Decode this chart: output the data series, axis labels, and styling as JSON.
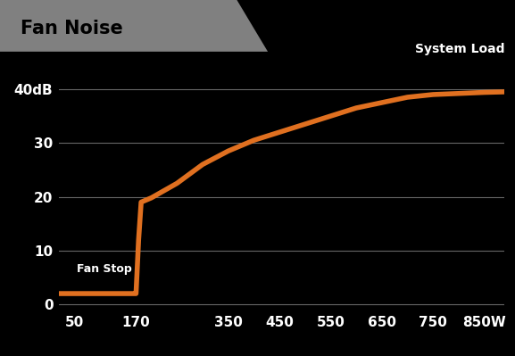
{
  "title": "Fan Noise",
  "title_bg_color": "#808080",
  "title_text_color": "#000000",
  "plot_bg_color": "#000000",
  "fig_bg_color": "#000000",
  "line_color": "#e07020",
  "line_width": 4,
  "grid_color": "#666666",
  "text_color": "#ffffff",
  "xlabel_text": "System Load",
  "annotation_text": "Fan Stop",
  "x_ticks": [
    50,
    170,
    350,
    450,
    550,
    650,
    750,
    850
  ],
  "x_tick_labels": [
    "50",
    "170",
    "350",
    "450",
    "550",
    "650",
    "750",
    "850W"
  ],
  "y_ticks": [
    0,
    10,
    20,
    30,
    40
  ],
  "y_tick_labels": [
    "0",
    "10",
    "20",
    "30",
    "40dB"
  ],
  "xlim": [
    20,
    890
  ],
  "ylim": [
    -1,
    44
  ],
  "curve_x": [
    20,
    50,
    100,
    140,
    160,
    168,
    170,
    172,
    175,
    180,
    200,
    250,
    300,
    350,
    400,
    450,
    500,
    550,
    600,
    650,
    700,
    750,
    800,
    850,
    890
  ],
  "curve_y": [
    2,
    2,
    2,
    2,
    2,
    2,
    2,
    6,
    12,
    19,
    19.8,
    22.5,
    26,
    28.5,
    30.5,
    32,
    33.5,
    35,
    36.5,
    37.5,
    38.5,
    39,
    39.2,
    39.4,
    39.5
  ]
}
